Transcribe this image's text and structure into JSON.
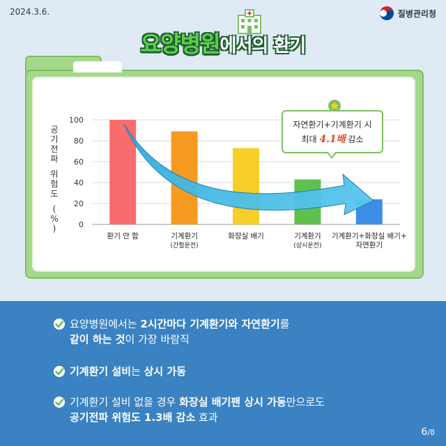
{
  "header": {
    "date": "2024.3.6.",
    "org": "질병관리청",
    "title_main": "요양병원",
    "title_sub": "에서의 환기"
  },
  "colors": {
    "background": "#dfeaf4",
    "folder": "#a5d88a",
    "bottom_panel": "#3a82c2",
    "arrow": "#3db4e0",
    "highlight": "#e0461f"
  },
  "icons": [
    "hospital-icon",
    "star-icon",
    "check-icon",
    "taegeuk-logo-icon"
  ],
  "callout": {
    "line1": "자연환기+기계환기 시",
    "line2_prefix": "최대 ",
    "line2_highlight": "4.1배",
    "line2_suffix": " 감소"
  },
  "chart_data": {
    "type": "bar",
    "ylabel": "공기전파 위험도 (%)",
    "ylim": [
      0,
      100
    ],
    "yticks": [
      0,
      20,
      40,
      60,
      80,
      100
    ],
    "grid": true,
    "categories": [
      {
        "main": "환기 안 함",
        "sub": ""
      },
      {
        "main": "기계환기",
        "sub": "(간헐운전)"
      },
      {
        "main": "화장실 배기",
        "sub": ""
      },
      {
        "main": "기계환기",
        "sub": "(상시운전)"
      },
      {
        "main": "기계환기+화장실 배기+",
        "sub": "자연환기"
      }
    ],
    "values": [
      100,
      89,
      73,
      43,
      24
    ],
    "bar_colors": [
      "#f76c6c",
      "#f79a22",
      "#f8ce2a",
      "#5fc050",
      "#3e8ee8"
    ]
  },
  "bullets": [
    {
      "lines": [
        [
          {
            "t": "요양병원에서는 ",
            "b": false
          },
          {
            "t": "2시간마다 기계환기와 자연환기",
            "b": true
          },
          {
            "t": "를",
            "b": false
          }
        ],
        [
          {
            "t": "같이 하는 것",
            "b": true
          },
          {
            "t": "이 가장 바람직",
            "b": false
          }
        ]
      ]
    },
    {
      "lines": [
        [
          {
            "t": "기계환기 설비",
            "b": true
          },
          {
            "t": "는 ",
            "b": false
          },
          {
            "t": "상시 가동",
            "b": true
          }
        ]
      ]
    },
    {
      "lines": [
        [
          {
            "t": "기계환기 설비 없을 경우 ",
            "b": false
          },
          {
            "t": "화장실 배기팬 상시 가동",
            "b": true
          },
          {
            "t": "만으로도",
            "b": false
          }
        ],
        [
          {
            "t": "공기전파 위험도 1.3배 감소",
            "b": true
          },
          {
            "t": " 효과",
            "b": false
          }
        ]
      ]
    }
  ],
  "pager": {
    "current": "6",
    "total": "/8"
  }
}
